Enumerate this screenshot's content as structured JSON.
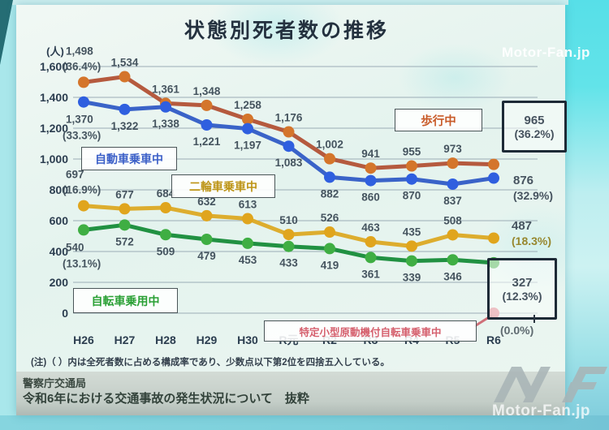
{
  "title": "状態別死者数の推移",
  "chart": {
    "y_unit": "(人)"
  },
  "footer": {
    "note": "(注)（ ）内は全死者数に占める構成率であり、少数点以下第2位を四捨五入している。",
    "source_org": "警察庁交通局",
    "source_doc": "令和6年における交通事故の発生状況について　抜粋"
  },
  "watermarks": {
    "site": "Motor-Fan.jp"
  },
  "chart_data": {
    "type": "line",
    "title": "状態別死者数の推移",
    "ylabel": "(人)",
    "ylim": [
      0,
      1600
    ],
    "y_ticks": [
      0,
      200,
      400,
      600,
      800,
      1000,
      1200,
      1400,
      1600
    ],
    "grid": true,
    "categories": [
      "H26",
      "H27",
      "H28",
      "H29",
      "H30",
      "R元",
      "R2",
      "R3",
      "R4",
      "R5",
      "R6"
    ],
    "series": [
      {
        "name": "歩行中",
        "line_color": "#b55a3e",
        "dot_color": "#d4752b",
        "label_side": "above",
        "first_pct": "(36.4%)",
        "values": [
          1498,
          1534,
          1361,
          1348,
          1258,
          1176,
          1002,
          941,
          955,
          973,
          965
        ],
        "end": {
          "style": "box",
          "value_label": "965",
          "pct": "(36.2%)"
        }
      },
      {
        "name": "自動車乗車中",
        "line_color": "#3a63c8",
        "dot_color": "#2f5fdf",
        "label_side": "below",
        "first_pct": "(33.3%)",
        "values": [
          1370,
          1322,
          1338,
          1221,
          1197,
          1083,
          882,
          860,
          870,
          837,
          876
        ],
        "end": {
          "style": "text",
          "value_label": "876",
          "pct": "(32.9%)"
        }
      },
      {
        "name": "二輪車乗車中",
        "line_color": "#ddad2e",
        "dot_color": "#e0a51d",
        "label_side": "above",
        "first_pct": "(16.9%)",
        "values": [
          697,
          677,
          684,
          632,
          613,
          510,
          526,
          463,
          435,
          508,
          487
        ],
        "end": {
          "style": "text",
          "value_label": "487",
          "pct": "(18.3%)"
        }
      },
      {
        "name": "自転車乗用中",
        "line_color": "#219142",
        "dot_color": "#3fae43",
        "label_side": "below",
        "first_pct": "(13.1%)",
        "values": [
          540,
          572,
          509,
          479,
          453,
          433,
          419,
          361,
          339,
          346,
          327
        ],
        "end": {
          "style": "box",
          "value_label": "327",
          "pct": "(12.3%)"
        }
      },
      {
        "name": "特定小型原動機付自転車乗車中",
        "line_color": "#dd7983",
        "dot_color": "#dd7983",
        "label_side": "below",
        "values": [
          null,
          null,
          null,
          null,
          null,
          null,
          null,
          null,
          null,
          null,
          0
        ],
        "end": {
          "style": "text",
          "pct": "(0.0%)"
        }
      }
    ]
  }
}
